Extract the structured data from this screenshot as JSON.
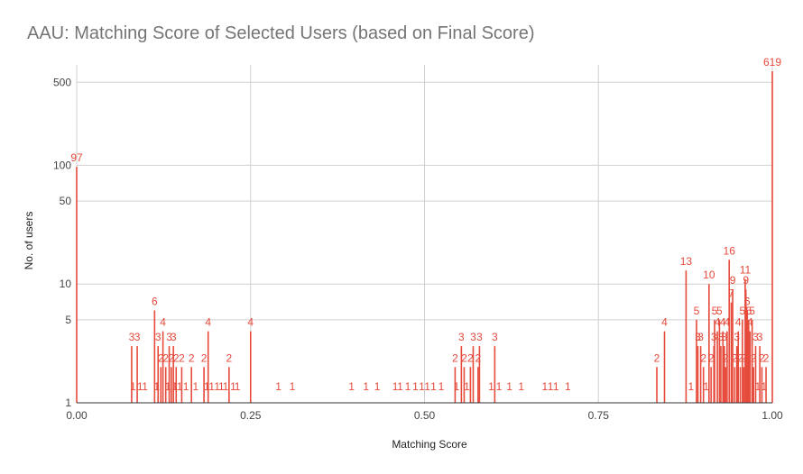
{
  "chart_data": {
    "type": "bar",
    "title": "AAU: Matching Score of Selected Users (based on Final Score)",
    "xlabel": "Matching Score",
    "ylabel": "No. of users",
    "y_scale": "log",
    "xlim": [
      0,
      1
    ],
    "ylim": [
      1,
      700
    ],
    "x_ticks": [
      "0.00",
      "0.25",
      "0.50",
      "0.75",
      "1.00"
    ],
    "y_ticks": [
      "1",
      "5",
      "10",
      "50",
      "100",
      "500"
    ],
    "bar_color": "#e64a3b",
    "grid": true,
    "points": [
      {
        "x": 0.0,
        "y": 97
      },
      {
        "x": 0.079,
        "y": 3
      },
      {
        "x": 0.087,
        "y": 3
      },
      {
        "x": 0.081,
        "y": 1
      },
      {
        "x": 0.091,
        "y": 1
      },
      {
        "x": 0.098,
        "y": 1
      },
      {
        "x": 0.112,
        "y": 6
      },
      {
        "x": 0.117,
        "y": 3
      },
      {
        "x": 0.124,
        "y": 4
      },
      {
        "x": 0.121,
        "y": 2
      },
      {
        "x": 0.128,
        "y": 2
      },
      {
        "x": 0.133,
        "y": 3
      },
      {
        "x": 0.139,
        "y": 3
      },
      {
        "x": 0.136,
        "y": 2
      },
      {
        "x": 0.143,
        "y": 2
      },
      {
        "x": 0.151,
        "y": 2
      },
      {
        "x": 0.115,
        "y": 1
      },
      {
        "x": 0.131,
        "y": 1
      },
      {
        "x": 0.141,
        "y": 1
      },
      {
        "x": 0.148,
        "y": 1
      },
      {
        "x": 0.157,
        "y": 1
      },
      {
        "x": 0.165,
        "y": 2
      },
      {
        "x": 0.171,
        "y": 1
      },
      {
        "x": 0.183,
        "y": 2
      },
      {
        "x": 0.189,
        "y": 4
      },
      {
        "x": 0.187,
        "y": 1
      },
      {
        "x": 0.194,
        "y": 1
      },
      {
        "x": 0.202,
        "y": 1
      },
      {
        "x": 0.208,
        "y": 1
      },
      {
        "x": 0.214,
        "y": 1
      },
      {
        "x": 0.219,
        "y": 2
      },
      {
        "x": 0.225,
        "y": 1
      },
      {
        "x": 0.231,
        "y": 1
      },
      {
        "x": 0.25,
        "y": 4
      },
      {
        "x": 0.29,
        "y": 1
      },
      {
        "x": 0.31,
        "y": 1
      },
      {
        "x": 0.395,
        "y": 1
      },
      {
        "x": 0.416,
        "y": 1
      },
      {
        "x": 0.432,
        "y": 1
      },
      {
        "x": 0.458,
        "y": 1
      },
      {
        "x": 0.465,
        "y": 1
      },
      {
        "x": 0.476,
        "y": 1
      },
      {
        "x": 0.487,
        "y": 1
      },
      {
        "x": 0.496,
        "y": 1
      },
      {
        "x": 0.504,
        "y": 1
      },
      {
        "x": 0.513,
        "y": 1
      },
      {
        "x": 0.524,
        "y": 1
      },
      {
        "x": 0.544,
        "y": 2
      },
      {
        "x": 0.546,
        "y": 1
      },
      {
        "x": 0.553,
        "y": 3
      },
      {
        "x": 0.557,
        "y": 2
      },
      {
        "x": 0.561,
        "y": 1
      },
      {
        "x": 0.566,
        "y": 2
      },
      {
        "x": 0.57,
        "y": 3
      },
      {
        "x": 0.579,
        "y": 3
      },
      {
        "x": 0.577,
        "y": 2
      },
      {
        "x": 0.601,
        "y": 3
      },
      {
        "x": 0.596,
        "y": 1
      },
      {
        "x": 0.607,
        "y": 1
      },
      {
        "x": 0.622,
        "y": 1
      },
      {
        "x": 0.639,
        "y": 1
      },
      {
        "x": 0.673,
        "y": 1
      },
      {
        "x": 0.681,
        "y": 1
      },
      {
        "x": 0.689,
        "y": 1
      },
      {
        "x": 0.706,
        "y": 1
      },
      {
        "x": 0.834,
        "y": 2
      },
      {
        "x": 0.845,
        "y": 4
      },
      {
        "x": 0.876,
        "y": 13
      },
      {
        "x": 0.883,
        "y": 1
      },
      {
        "x": 0.891,
        "y": 5
      },
      {
        "x": 0.893,
        "y": 3
      },
      {
        "x": 0.897,
        "y": 3
      },
      {
        "x": 0.901,
        "y": 2
      },
      {
        "x": 0.905,
        "y": 1
      },
      {
        "x": 0.909,
        "y": 10
      },
      {
        "x": 0.912,
        "y": 2
      },
      {
        "x": 0.916,
        "y": 3
      },
      {
        "x": 0.917,
        "y": 5
      },
      {
        "x": 0.921,
        "y": 4
      },
      {
        "x": 0.924,
        "y": 5
      },
      {
        "x": 0.926,
        "y": 3
      },
      {
        "x": 0.929,
        "y": 4
      },
      {
        "x": 0.931,
        "y": 3
      },
      {
        "x": 0.933,
        "y": 2
      },
      {
        "x": 0.935,
        "y": 4
      },
      {
        "x": 0.938,
        "y": 16
      },
      {
        "x": 0.941,
        "y": 7
      },
      {
        "x": 0.943,
        "y": 9
      },
      {
        "x": 0.946,
        "y": 2
      },
      {
        "x": 0.949,
        "y": 3
      },
      {
        "x": 0.951,
        "y": 4
      },
      {
        "x": 0.954,
        "y": 2
      },
      {
        "x": 0.957,
        "y": 5
      },
      {
        "x": 0.959,
        "y": 2
      },
      {
        "x": 0.961,
        "y": 11
      },
      {
        "x": 0.962,
        "y": 9
      },
      {
        "x": 0.964,
        "y": 6
      },
      {
        "x": 0.966,
        "y": 5
      },
      {
        "x": 0.968,
        "y": 4
      },
      {
        "x": 0.971,
        "y": 5
      },
      {
        "x": 0.973,
        "y": 2
      },
      {
        "x": 0.976,
        "y": 3
      },
      {
        "x": 0.979,
        "y": 1
      },
      {
        "x": 0.982,
        "y": 3
      },
      {
        "x": 0.985,
        "y": 2
      },
      {
        "x": 0.988,
        "y": 1
      },
      {
        "x": 0.991,
        "y": 2
      },
      {
        "x": 1.0,
        "y": 619
      }
    ]
  }
}
